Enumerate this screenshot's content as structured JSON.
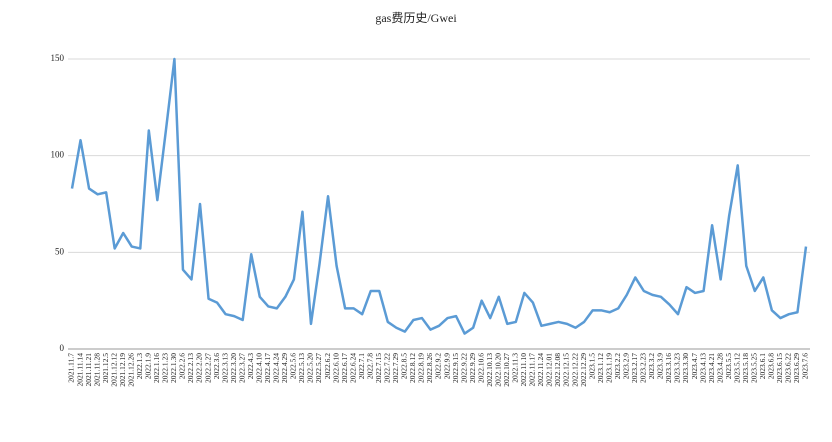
{
  "chart_data": {
    "type": "line",
    "title": "gas费历史/Gwei",
    "x": [
      "2021.11.7",
      "2021.11.14",
      "2021.11.21",
      "2021.11.28",
      "2021.12.5",
      "2021.12.12",
      "2021.12.19",
      "2021.12.26",
      "2022.1.3",
      "2022.1.9",
      "2022.1.16",
      "2022.1.23",
      "2022.1.30",
      "2022.2.6",
      "2022.2.13",
      "2022.2.20",
      "2022.2.27",
      "2022.3.6",
      "2022.3.13",
      "2022.3.20",
      "2022.3.27",
      "2022.4.3",
      "2022.4.10",
      "2022.4.17",
      "2022.4.24",
      "2022.4.29",
      "2022.5.6",
      "2022.5.13",
      "2022.5.20",
      "2022.5.27",
      "2022.6.2",
      "2022.6.10",
      "2022.6.17",
      "2022.6.24",
      "2022.7.1",
      "2022.7.8",
      "2022.7.15",
      "2022.7.22",
      "2022.7.29",
      "2022.8.5",
      "2022.8.12",
      "2022.8.19",
      "2022.8.26",
      "2022.9.2",
      "2022.9.9",
      "2022.9.15",
      "2022.9.22",
      "2022.9.29",
      "2022.10.6",
      "2022.10.13",
      "2022.10.20",
      "2022.10.27",
      "2022.11.3",
      "2022.11.10",
      "2022.11.17",
      "2022.11.24",
      "2022.12.01",
      "2022.12.08",
      "2022.12.15",
      "2022.12.22",
      "2022.12.29",
      "2023.1.5",
      "2023.1.12",
      "2023.1.19",
      "2023.2.2",
      "2023.2.9",
      "2023.2.17",
      "2023.2.23",
      "2023.3.2",
      "2023.3.9",
      "2023.3.16",
      "2023.3.23",
      "2023.3.30",
      "2023.4.7",
      "2023.4.13",
      "2023.4.21",
      "2023.4.28",
      "2023.5.5",
      "2023.5.12",
      "2023.5.18",
      "2023.5.25",
      "2023.6.1",
      "2023.6.8",
      "2023.6.15",
      "2023.6.22",
      "2023.6.29",
      "2023.7.6"
    ],
    "series": [
      {
        "color": "#5b9bd5",
        "values": [
          83,
          108,
          83,
          80,
          81,
          52,
          60,
          53,
          52,
          113,
          77,
          113,
          150,
          41,
          36,
          75,
          26,
          24,
          18,
          17,
          15,
          49,
          27,
          22,
          21,
          27,
          36,
          71,
          13,
          44,
          79,
          43,
          21,
          21,
          18,
          30,
          30,
          14,
          11,
          9,
          15,
          16,
          10,
          12,
          16,
          17,
          8,
          11,
          25,
          16,
          27,
          13,
          14,
          29,
          24,
          12,
          13,
          14,
          13,
          11,
          14,
          20,
          20,
          19,
          21,
          28,
          37,
          30,
          28,
          27,
          23,
          18,
          32,
          29,
          30,
          64,
          36,
          69,
          95,
          43,
          30,
          37,
          20,
          16,
          18,
          19,
          53
        ]
      }
    ],
    "ylim": [
      0,
      150
    ],
    "yticks": [
      0,
      50,
      100,
      150
    ],
    "grid": true
  }
}
